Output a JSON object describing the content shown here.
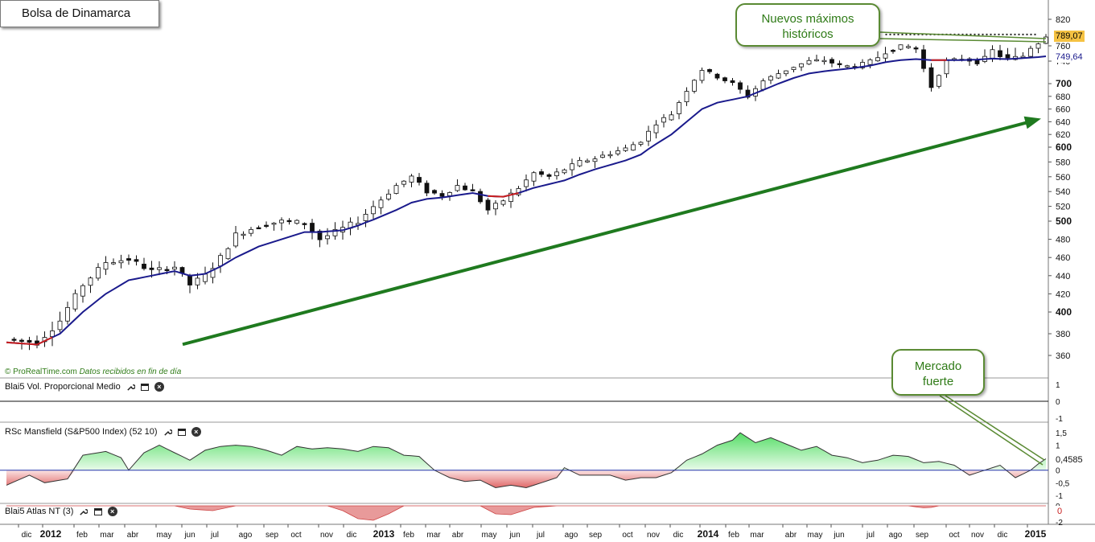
{
  "title": "Bolsa de Dinamarca",
  "source_brand": "© ProRealTime.com",
  "source_note": "Datos recibidos en fin de día",
  "callouts": {
    "highs": "Nuevos máximos históricos",
    "strong": "Mercado fuerte"
  },
  "colors": {
    "candle_up": "#ffffff",
    "candle_down": "#111111",
    "ma_line": "#1a1a8c",
    "ma_red": "#c81e1e",
    "trend_arrow": "#1f7a1f",
    "positive_fill": "#9fe8a8",
    "negative_fill": "#e89a9a",
    "price_tag_bg": "#f5c242"
  },
  "chart_data": [
    {
      "type": "candlestick",
      "name": "Bolsa de Dinamarca",
      "x_labels": [
        "dic",
        "2012",
        "feb",
        "mar",
        "abr",
        "may",
        "jun",
        "jul",
        "ago",
        "sep",
        "oct",
        "nov",
        "dic",
        "2013",
        "feb",
        "mar",
        "abr",
        "may",
        "jun",
        "jul",
        "ago",
        "sep",
        "oct",
        "nov",
        "dic",
        "2014",
        "feb",
        "mar",
        "abr",
        "may",
        "jun",
        "jul",
        "ago",
        "sep",
        "oct",
        "nov",
        "dic",
        "2015"
      ],
      "y_ticks": [
        360,
        380,
        400,
        420,
        440,
        460,
        480,
        500,
        520,
        540,
        560,
        580,
        600,
        620,
        640,
        660,
        680,
        700,
        740,
        760,
        820
      ],
      "ylim": [
        340,
        830
      ],
      "last_price": "789,07",
      "ma_value": "749,64",
      "close_anchors": [
        [
          0,
          375
        ],
        [
          4,
          372
        ],
        [
          7,
          392
        ],
        [
          10,
          430
        ],
        [
          13,
          455
        ],
        [
          16,
          458
        ],
        [
          19,
          445
        ],
        [
          22,
          450
        ],
        [
          24,
          430
        ],
        [
          26,
          440
        ],
        [
          28,
          460
        ],
        [
          30,
          485
        ],
        [
          33,
          495
        ],
        [
          36,
          500
        ],
        [
          39,
          498
        ],
        [
          41,
          480
        ],
        [
          44,
          492
        ],
        [
          46,
          500
        ],
        [
          48,
          520
        ],
        [
          51,
          548
        ],
        [
          53,
          560
        ],
        [
          55,
          540
        ],
        [
          57,
          535
        ],
        [
          59,
          548
        ],
        [
          61,
          540
        ],
        [
          63,
          515
        ],
        [
          65,
          528
        ],
        [
          67,
          545
        ],
        [
          69,
          565
        ],
        [
          71,
          560
        ],
        [
          73,
          570
        ],
        [
          75,
          580
        ],
        [
          77,
          585
        ],
        [
          79,
          592
        ],
        [
          81,
          598
        ],
        [
          83,
          610
        ],
        [
          85,
          638
        ],
        [
          87,
          652
        ],
        [
          89,
          690
        ],
        [
          91,
          725
        ],
        [
          93,
          712
        ],
        [
          95,
          700
        ],
        [
          97,
          680
        ],
        [
          99,
          705
        ],
        [
          101,
          718
        ],
        [
          103,
          730
        ],
        [
          105,
          740
        ],
        [
          107,
          742
        ],
        [
          109,
          732
        ],
        [
          111,
          730
        ],
        [
          113,
          740
        ],
        [
          115,
          755
        ],
        [
          117,
          760
        ],
        [
          119,
          758
        ],
        [
          121,
          695
        ],
        [
          123,
          740
        ],
        [
          125,
          745
        ],
        [
          127,
          738
        ],
        [
          129,
          755
        ],
        [
          131,
          745
        ],
        [
          133,
          750
        ],
        [
          135,
          768
        ],
        [
          136,
          789
        ]
      ],
      "ma_anchors": [
        [
          0,
          372
        ],
        [
          4,
          370
        ],
        [
          7,
          380
        ],
        [
          10,
          400
        ],
        [
          13,
          420
        ],
        [
          16,
          435
        ],
        [
          19,
          440
        ],
        [
          22,
          445
        ],
        [
          24,
          440
        ],
        [
          26,
          442
        ],
        [
          28,
          450
        ],
        [
          30,
          460
        ],
        [
          33,
          472
        ],
        [
          36,
          480
        ],
        [
          39,
          488
        ],
        [
          41,
          488
        ],
        [
          44,
          490
        ],
        [
          46,
          495
        ],
        [
          48,
          502
        ],
        [
          51,
          515
        ],
        [
          53,
          525
        ],
        [
          55,
          530
        ],
        [
          57,
          532
        ],
        [
          59,
          535
        ],
        [
          61,
          538
        ],
        [
          63,
          534
        ],
        [
          65,
          533
        ],
        [
          67,
          538
        ],
        [
          69,
          545
        ],
        [
          71,
          550
        ],
        [
          73,
          555
        ],
        [
          75,
          563
        ],
        [
          77,
          570
        ],
        [
          79,
          576
        ],
        [
          81,
          582
        ],
        [
          83,
          590
        ],
        [
          85,
          605
        ],
        [
          87,
          620
        ],
        [
          89,
          640
        ],
        [
          91,
          660
        ],
        [
          93,
          670
        ],
        [
          95,
          675
        ],
        [
          97,
          680
        ],
        [
          99,
          690
        ],
        [
          101,
          700
        ],
        [
          103,
          710
        ],
        [
          105,
          718
        ],
        [
          107,
          722
        ],
        [
          109,
          725
        ],
        [
          111,
          728
        ],
        [
          113,
          732
        ],
        [
          115,
          738
        ],
        [
          117,
          742
        ],
        [
          119,
          744
        ],
        [
          121,
          742
        ],
        [
          123,
          742
        ],
        [
          125,
          742
        ],
        [
          127,
          743
        ],
        [
          129,
          745
        ],
        [
          131,
          744
        ],
        [
          133,
          746
        ],
        [
          135,
          748
        ],
        [
          136,
          749.64
        ]
      ],
      "ma_red_segments": [
        [
          0,
          6
        ],
        [
          63,
          67
        ],
        [
          121,
          123
        ]
      ],
      "resistance_level": 765,
      "trend_arrow": {
        "from": [
          22,
          385
        ],
        "to": [
          136,
          645
        ]
      }
    },
    {
      "type": "line",
      "name": "Blai5 Vol. Proporcional Medio",
      "y_ticks": [
        "1",
        "0",
        "-1"
      ],
      "ylim": [
        -1,
        1
      ],
      "values": [
        0
      ]
    },
    {
      "type": "area",
      "name": "RSc Mansfield (S&P500 Index) (52 10)",
      "y_ticks": [
        "1,5",
        "1",
        "0,5",
        "0",
        "-0,5",
        "-1"
      ],
      "ylim": [
        -1.2,
        1.6
      ],
      "last_value": "0,4585",
      "anchors": [
        [
          0,
          -0.6
        ],
        [
          3,
          -0.2
        ],
        [
          5,
          -0.5
        ],
        [
          8,
          -0.35
        ],
        [
          10,
          0.6
        ],
        [
          13,
          0.75
        ],
        [
          15,
          0.5
        ],
        [
          16,
          0.0
        ],
        [
          18,
          0.7
        ],
        [
          20,
          1.0
        ],
        [
          22,
          0.7
        ],
        [
          24,
          0.4
        ],
        [
          26,
          0.8
        ],
        [
          28,
          0.95
        ],
        [
          30,
          1.0
        ],
        [
          32,
          0.95
        ],
        [
          34,
          0.8
        ],
        [
          36,
          0.6
        ],
        [
          38,
          0.95
        ],
        [
          40,
          0.85
        ],
        [
          42,
          0.9
        ],
        [
          44,
          0.85
        ],
        [
          46,
          0.75
        ],
        [
          48,
          0.95
        ],
        [
          50,
          0.9
        ],
        [
          52,
          0.6
        ],
        [
          54,
          0.55
        ],
        [
          56,
          0.0
        ],
        [
          58,
          -0.3
        ],
        [
          60,
          -0.45
        ],
        [
          62,
          -0.4
        ],
        [
          64,
          -0.7
        ],
        [
          66,
          -0.6
        ],
        [
          68,
          -0.7
        ],
        [
          70,
          -0.5
        ],
        [
          72,
          -0.3
        ],
        [
          73,
          0.1
        ],
        [
          75,
          -0.2
        ],
        [
          77,
          -0.2
        ],
        [
          79,
          -0.2
        ],
        [
          81,
          -0.4
        ],
        [
          83,
          -0.3
        ],
        [
          85,
          -0.3
        ],
        [
          87,
          -0.1
        ],
        [
          89,
          0.4
        ],
        [
          91,
          0.65
        ],
        [
          93,
          1.0
        ],
        [
          95,
          1.2
        ],
        [
          96,
          1.5
        ],
        [
          98,
          1.1
        ],
        [
          100,
          1.3
        ],
        [
          102,
          1.05
        ],
        [
          104,
          0.8
        ],
        [
          106,
          0.95
        ],
        [
          108,
          0.6
        ],
        [
          110,
          0.5
        ],
        [
          112,
          0.3
        ],
        [
          114,
          0.4
        ],
        [
          116,
          0.6
        ],
        [
          118,
          0.55
        ],
        [
          120,
          0.3
        ],
        [
          122,
          0.35
        ],
        [
          124,
          0.2
        ],
        [
          126,
          -0.2
        ],
        [
          128,
          0.0
        ],
        [
          130,
          0.2
        ],
        [
          132,
          -0.3
        ],
        [
          134,
          0.0
        ],
        [
          135,
          0.25
        ],
        [
          136,
          0.4585
        ]
      ]
    },
    {
      "type": "area",
      "name": "Blai5 Atlas NT (3)",
      "y_ticks": [
        "0",
        "-2"
      ],
      "ylim": [
        -2.2,
        0.2
      ],
      "last_value": "0",
      "anchors": [
        [
          0,
          0
        ],
        [
          22,
          0
        ],
        [
          24,
          -0.4
        ],
        [
          27,
          -0.6
        ],
        [
          30,
          0
        ],
        [
          42,
          0
        ],
        [
          44,
          -0.6
        ],
        [
          46,
          -1.6
        ],
        [
          48,
          -1.8
        ],
        [
          50,
          -1.0
        ],
        [
          52,
          0
        ],
        [
          62,
          0
        ],
        [
          64,
          -1.0
        ],
        [
          66,
          -1.1
        ],
        [
          69,
          -0.2
        ],
        [
          72,
          0
        ],
        [
          118,
          0
        ],
        [
          120,
          -0.25
        ],
        [
          121,
          -0.2
        ],
        [
          122,
          0
        ],
        [
          136,
          0
        ]
      ]
    }
  ]
}
